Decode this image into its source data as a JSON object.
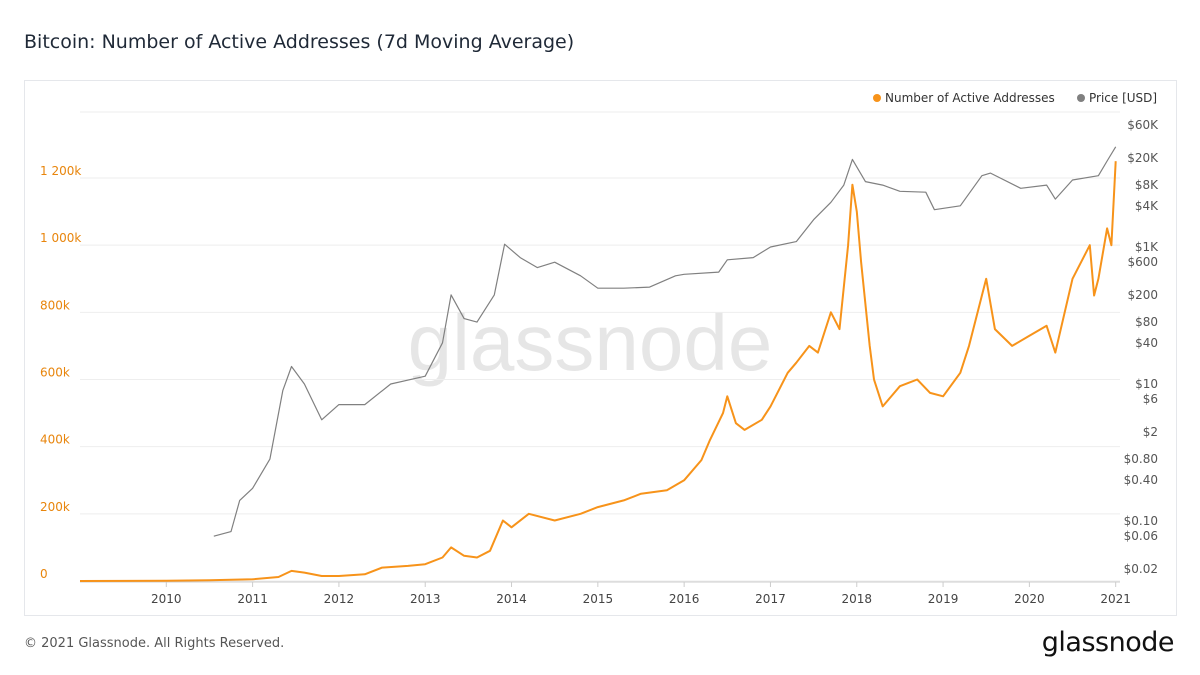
{
  "title": "Bitcoin: Number of Active Addresses (7d Moving Average)",
  "footer": "© 2021 Glassnode. All Rights Reserved.",
  "brand": "glassnode",
  "watermark": "glassnode",
  "chart_data": {
    "type": "line",
    "title": "Bitcoin: Number of Active Addresses (7d Moving Average)",
    "legend_position": "top-right",
    "grid": true,
    "x_ticks": [
      "2010",
      "2011",
      "2012",
      "2013",
      "2014",
      "2015",
      "2016",
      "2017",
      "2018",
      "2019",
      "2020",
      "2021"
    ],
    "xlim": [
      2009.0,
      2021.05
    ],
    "left_axis": {
      "ticks": [
        0,
        200,
        400,
        600,
        800,
        1000,
        1200
      ],
      "tick_labels": [
        "0",
        "200k",
        "400k",
        "600k",
        "800k",
        "1 000k",
        "1 200k"
      ],
      "ylim": [
        0,
        1360
      ],
      "color": "#e8850c"
    },
    "right_axis": {
      "scale": "log",
      "tick_values": [
        0.02,
        0.06,
        0.1,
        0.4,
        0.8,
        2,
        6,
        10,
        40,
        80,
        200,
        600,
        1000,
        4000,
        8000,
        20000,
        60000
      ],
      "tick_labels": [
        "$0.02",
        "$0.06",
        "$0.10",
        "$0.40",
        "$0.80",
        "$2",
        "$6",
        "$10",
        "$40",
        "$80",
        "$200",
        "$600",
        "$1K",
        "$4K",
        "$8K",
        "$20K",
        "$60K"
      ],
      "color": "#555555"
    },
    "series": [
      {
        "name": "Number of Active Addresses",
        "color": "#f7931a",
        "axis": "left",
        "unit": "k",
        "x": [
          2009.0,
          2010.0,
          2010.5,
          2011.0,
          2011.3,
          2011.45,
          2011.6,
          2011.8,
          2012.0,
          2012.3,
          2012.5,
          2012.8,
          2013.0,
          2013.2,
          2013.3,
          2013.45,
          2013.6,
          2013.75,
          2013.9,
          2014.0,
          2014.2,
          2014.5,
          2014.8,
          2015.0,
          2015.3,
          2015.5,
          2015.8,
          2016.0,
          2016.2,
          2016.3,
          2016.45,
          2016.5,
          2016.6,
          2016.7,
          2016.9,
          2017.0,
          2017.2,
          2017.3,
          2017.45,
          2017.55,
          2017.7,
          2017.8,
          2017.9,
          2017.95,
          2018.0,
          2018.05,
          2018.15,
          2018.2,
          2018.3,
          2018.5,
          2018.7,
          2018.85,
          2019.0,
          2019.2,
          2019.3,
          2019.45,
          2019.5,
          2019.6,
          2019.8,
          2020.0,
          2020.2,
          2020.3,
          2020.5,
          2020.7,
          2020.75,
          2020.8,
          2020.9,
          2020.95,
          2021.0
        ],
        "values": [
          0,
          1,
          2,
          5,
          12,
          30,
          25,
          15,
          15,
          20,
          40,
          45,
          50,
          70,
          100,
          75,
          70,
          90,
          180,
          160,
          200,
          180,
          200,
          220,
          240,
          260,
          270,
          300,
          360,
          420,
          500,
          550,
          470,
          450,
          480,
          520,
          620,
          650,
          700,
          680,
          800,
          750,
          1000,
          1180,
          1100,
          950,
          700,
          600,
          520,
          580,
          600,
          560,
          550,
          620,
          700,
          850,
          900,
          750,
          700,
          730,
          760,
          680,
          900,
          1000,
          850,
          900,
          1050,
          1000,
          1250
        ]
      },
      {
        "name": "Price [USD]",
        "color": "#808080",
        "axis": "right",
        "x": [
          2010.55,
          2010.75,
          2010.85,
          2011.0,
          2011.2,
          2011.35,
          2011.45,
          2011.6,
          2011.8,
          2012.0,
          2012.3,
          2012.6,
          2013.0,
          2013.2,
          2013.3,
          2013.45,
          2013.6,
          2013.8,
          2013.92,
          2014.1,
          2014.3,
          2014.5,
          2014.8,
          2015.0,
          2015.3,
          2015.6,
          2015.9,
          2016.0,
          2016.4,
          2016.5,
          2016.8,
          2017.0,
          2017.3,
          2017.5,
          2017.7,
          2017.85,
          2017.95,
          2018.1,
          2018.3,
          2018.5,
          2018.8,
          2018.9,
          2019.2,
          2019.45,
          2019.55,
          2019.9,
          2020.2,
          2020.3,
          2020.5,
          2020.8,
          2020.9,
          2021.0
        ],
        "values": [
          0.06,
          0.07,
          0.2,
          0.3,
          0.8,
          8,
          18,
          10,
          3,
          5,
          5,
          10,
          13,
          40,
          200,
          90,
          80,
          200,
          1100,
          700,
          500,
          600,
          380,
          250,
          250,
          260,
          380,
          400,
          430,
          650,
          700,
          1000,
          1200,
          2500,
          4500,
          8000,
          19000,
          9000,
          8000,
          6500,
          6300,
          3500,
          4000,
          11000,
          12000,
          7200,
          8000,
          5000,
          9500,
          11000,
          18000,
          29000
        ]
      }
    ]
  }
}
